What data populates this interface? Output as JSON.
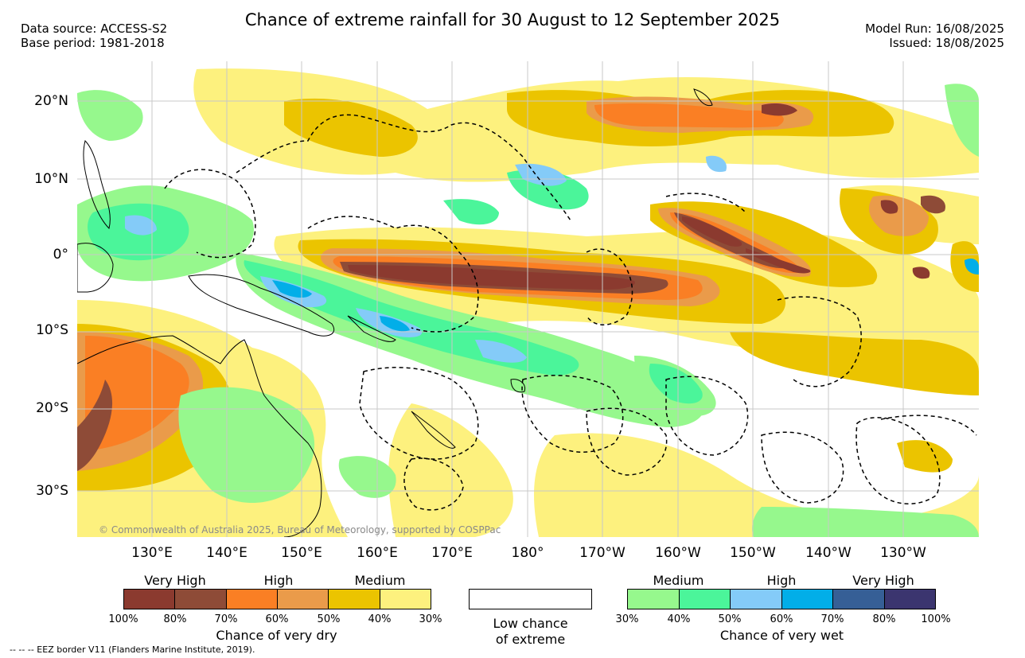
{
  "header": {
    "title": "Chance of extreme rainfall for 30 August to 12 September 2025",
    "data_source": "Data source: ACCESS-S2",
    "base_period": "Base period: 1981-2018",
    "model_run": "Model Run: 16/08/2025",
    "issued": "Issued: 18/08/2025"
  },
  "map": {
    "lat_labels": [
      "20°N",
      "10°N",
      "0°",
      "10°S",
      "20°S",
      "30°S"
    ],
    "lon_labels": [
      "130°E",
      "140°E",
      "150°E",
      "160°E",
      "170°E",
      "180°",
      "170°W",
      "160°W",
      "150°W",
      "140°W",
      "130°W"
    ],
    "copyright": "© Commonwealth of Australia 2025, Bureau of Meteorology, supported by COSPPac"
  },
  "legend": {
    "dry": {
      "levels": [
        "Very High",
        "High",
        "Medium"
      ],
      "ticks": [
        "100%",
        "80%",
        "70%",
        "60%",
        "50%",
        "40%",
        "30%"
      ],
      "caption": "Chance of very dry",
      "colors": [
        "#8b3a2f",
        "#8e4b37",
        "#fa7f24",
        "#ea9b4a",
        "#ebc400",
        "#fdf17e"
      ]
    },
    "low": {
      "caption_line1": "Low chance",
      "caption_line2": "of extreme",
      "color": "#ffffff"
    },
    "wet": {
      "levels": [
        "Medium",
        "High",
        "Very High"
      ],
      "ticks": [
        "30%",
        "40%",
        "50%",
        "60%",
        "70%",
        "80%",
        "100%"
      ],
      "caption": "Chance of very wet",
      "colors": [
        "#96f88d",
        "#4bf59a",
        "#84cbf8",
        "#02aee8",
        "#365f96",
        "#3b356f"
      ]
    }
  },
  "footer": {
    "eez_note": "-- -- -- EEZ border V11 (Flanders Marine Institute, 2019)."
  }
}
